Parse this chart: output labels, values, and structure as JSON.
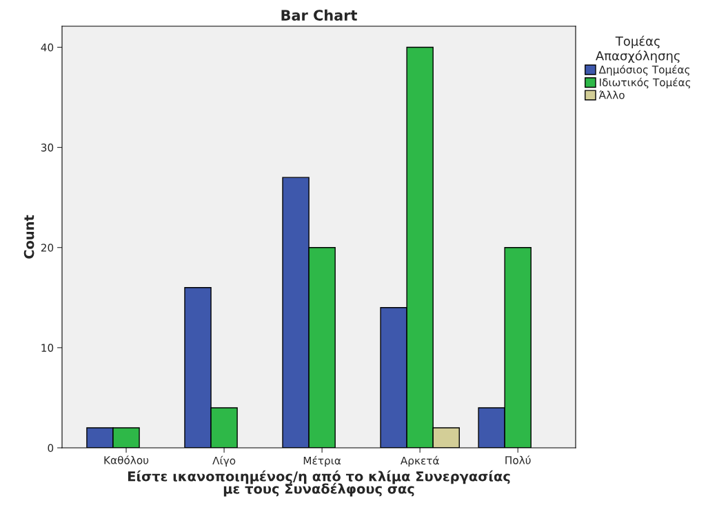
{
  "chart_data": {
    "type": "bar",
    "title": "Bar Chart",
    "categories": [
      "Καθόλου",
      "Λίγο",
      "Μέτρια",
      "Αρκετά",
      "Πολύ"
    ],
    "series": [
      {
        "name": "Δημόσιος Τομέας",
        "color": "#3e58ac",
        "values": [
          2,
          16,
          27,
          14,
          4
        ]
      },
      {
        "name": "Ιδιωτικός Τομέας",
        "color": "#2eb848",
        "values": [
          2,
          4,
          20,
          40,
          20
        ]
      },
      {
        "name": "Άλλο",
        "color": "#d3ce97",
        "values": [
          null,
          null,
          null,
          2,
          null
        ]
      }
    ],
    "xlabel": "Είστε ικανοποιημένος/η από το κλίμα Συνεργασίας\nμε τους Συναδέλφους σας",
    "ylabel": "Count",
    "legend_title": "Τομέας\nΑπασχόλησης",
    "ylim": [
      0,
      42.1
    ],
    "yticks": [
      0,
      10,
      20,
      30,
      40
    ],
    "grid": false,
    "legend": "top right"
  }
}
